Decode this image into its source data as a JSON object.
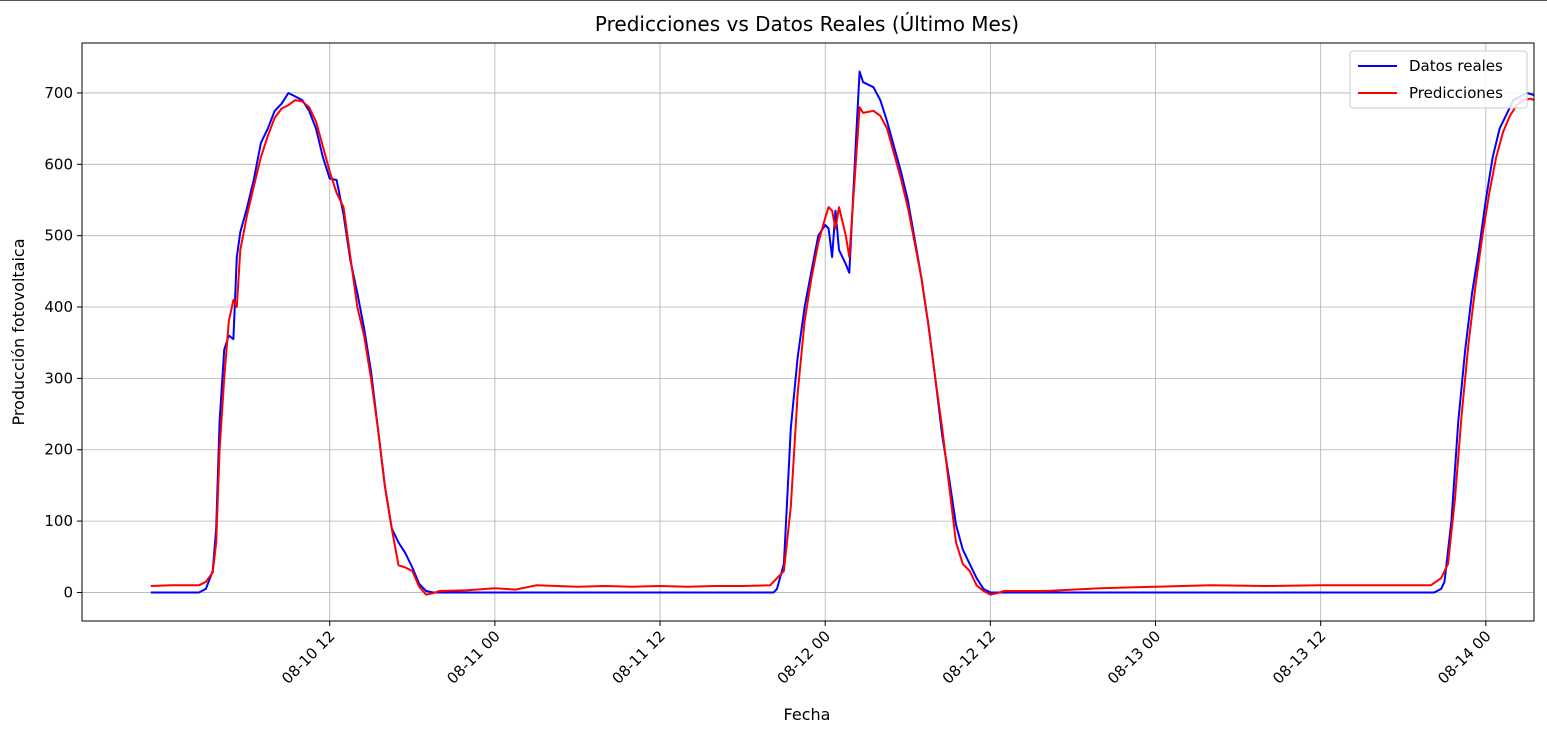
{
  "chart_data": {
    "type": "line",
    "title": "Predicciones vs Datos Reales (Último Mes)",
    "xlabel": "Fecha",
    "ylabel": "Producción fotovoltaica",
    "xlim": [
      "2023-08-09 18:00",
      "2023-08-14 03:30"
    ],
    "ylim": [
      -40,
      770
    ],
    "grid": true,
    "legend_position": "top-right",
    "x_ticks": [
      "08-10 12",
      "08-11 00",
      "08-11 12",
      "08-12 00",
      "08-12 12",
      "08-13 00",
      "08-13 12",
      "08-14 00"
    ],
    "x_tick_dates": [
      "2023-08-10 12:00",
      "2023-08-11 00:00",
      "2023-08-11 12:00",
      "2023-08-12 00:00",
      "2023-08-12 12:00",
      "2023-08-13 00:00",
      "2023-08-13 12:00",
      "2023-08-14 00:00"
    ],
    "y_ticks": [
      0,
      100,
      200,
      300,
      400,
      500,
      600,
      700
    ],
    "series": [
      {
        "name": "Datos reales",
        "color": "#0000ff",
        "points": [
          [
            "2023-08-09 23:00",
            0
          ],
          [
            "2023-08-10 02:30",
            0
          ],
          [
            "2023-08-10 03:00",
            5
          ],
          [
            "2023-08-10 03:30",
            30
          ],
          [
            "2023-08-10 03:45",
            90
          ],
          [
            "2023-08-10 04:00",
            240
          ],
          [
            "2023-08-10 04:20",
            340
          ],
          [
            "2023-08-10 04:40",
            360
          ],
          [
            "2023-08-10 05:00",
            355
          ],
          [
            "2023-08-10 05:15",
            470
          ],
          [
            "2023-08-10 05:30",
            505
          ],
          [
            "2023-08-10 06:00",
            540
          ],
          [
            "2023-08-10 06:30",
            580
          ],
          [
            "2023-08-10 07:00",
            630
          ],
          [
            "2023-08-10 07:30",
            650
          ],
          [
            "2023-08-10 08:00",
            675
          ],
          [
            "2023-08-10 08:30",
            685
          ],
          [
            "2023-08-10 09:00",
            700
          ],
          [
            "2023-08-10 09:30",
            695
          ],
          [
            "2023-08-10 10:00",
            690
          ],
          [
            "2023-08-10 10:30",
            675
          ],
          [
            "2023-08-10 11:00",
            650
          ],
          [
            "2023-08-10 11:30",
            610
          ],
          [
            "2023-08-10 12:00",
            580
          ],
          [
            "2023-08-10 12:30",
            578
          ],
          [
            "2023-08-10 13:00",
            530
          ],
          [
            "2023-08-10 13:30",
            465
          ],
          [
            "2023-08-10 14:00",
            420
          ],
          [
            "2023-08-10 14:30",
            370
          ],
          [
            "2023-08-10 15:00",
            310
          ],
          [
            "2023-08-10 15:30",
            230
          ],
          [
            "2023-08-10 16:00",
            150
          ],
          [
            "2023-08-10 16:30",
            90
          ],
          [
            "2023-08-10 17:00",
            70
          ],
          [
            "2023-08-10 17:30",
            55
          ],
          [
            "2023-08-10 18:00",
            35
          ],
          [
            "2023-08-10 18:30",
            12
          ],
          [
            "2023-08-10 19:00",
            2
          ],
          [
            "2023-08-10 19:30",
            0
          ],
          [
            "2023-08-11 20:15",
            0
          ],
          [
            "2023-08-11 20:30",
            5
          ],
          [
            "2023-08-11 21:00",
            40
          ],
          [
            "2023-08-11 21:30",
            230
          ],
          [
            "2023-08-11 22:00",
            330
          ],
          [
            "2023-08-11 22:30",
            400
          ],
          [
            "2023-08-11 23:00",
            450
          ],
          [
            "2023-08-11 23:30",
            500
          ],
          [
            "2023-08-12 00:00",
            515
          ],
          [
            "2023-08-12 00:15",
            510
          ],
          [
            "2023-08-12 00:30",
            470
          ],
          [
            "2023-08-12 00:45",
            535
          ],
          [
            "2023-08-12 01:00",
            480
          ],
          [
            "2023-08-12 01:30",
            460
          ],
          [
            "2023-08-12 01:45",
            448
          ],
          [
            "2023-08-12 02:15",
            640
          ],
          [
            "2023-08-12 02:30",
            730
          ],
          [
            "2023-08-12 02:45",
            715
          ],
          [
            "2023-08-12 03:30",
            708
          ],
          [
            "2023-08-12 04:00",
            690
          ],
          [
            "2023-08-12 04:30",
            660
          ],
          [
            "2023-08-12 05:00",
            625
          ],
          [
            "2023-08-12 05:30",
            590
          ],
          [
            "2023-08-12 06:00",
            550
          ],
          [
            "2023-08-12 06:30",
            495
          ],
          [
            "2023-08-12 07:00",
            440
          ],
          [
            "2023-08-12 07:30",
            375
          ],
          [
            "2023-08-12 08:00",
            300
          ],
          [
            "2023-08-12 08:30",
            220
          ],
          [
            "2023-08-12 09:00",
            160
          ],
          [
            "2023-08-12 09:30",
            95
          ],
          [
            "2023-08-12 10:00",
            60
          ],
          [
            "2023-08-12 10:30",
            40
          ],
          [
            "2023-08-12 11:00",
            20
          ],
          [
            "2023-08-12 11:30",
            5
          ],
          [
            "2023-08-12 12:00",
            0
          ],
          [
            "2023-08-13 20:15",
            0
          ],
          [
            "2023-08-13 20:45",
            5
          ],
          [
            "2023-08-13 21:00",
            15
          ],
          [
            "2023-08-13 21:30",
            100
          ],
          [
            "2023-08-13 22:00",
            240
          ],
          [
            "2023-08-13 22:30",
            340
          ],
          [
            "2023-08-13 23:00",
            420
          ],
          [
            "2023-08-13 23:30",
            480
          ],
          [
            "2023-08-14 00:00",
            550
          ],
          [
            "2023-08-14 00:30",
            610
          ],
          [
            "2023-08-14 01:00",
            650
          ],
          [
            "2023-08-14 01:30",
            670
          ],
          [
            "2023-08-14 02:00",
            690
          ],
          [
            "2023-08-14 02:30",
            695
          ],
          [
            "2023-08-14 03:00",
            700
          ],
          [
            "2023-08-14 03:30",
            697
          ]
        ]
      },
      {
        "name": "Predicciones",
        "color": "#ff0000",
        "points": [
          [
            "2023-08-09 23:00",
            9
          ],
          [
            "2023-08-10 00:30",
            10
          ],
          [
            "2023-08-10 02:30",
            10
          ],
          [
            "2023-08-10 03:00",
            15
          ],
          [
            "2023-08-10 03:30",
            28
          ],
          [
            "2023-08-10 03:45",
            70
          ],
          [
            "2023-08-10 04:00",
            200
          ],
          [
            "2023-08-10 04:20",
            300
          ],
          [
            "2023-08-10 04:40",
            380
          ],
          [
            "2023-08-10 05:00",
            410
          ],
          [
            "2023-08-10 05:15",
            400
          ],
          [
            "2023-08-10 05:30",
            480
          ],
          [
            "2023-08-10 06:00",
            530
          ],
          [
            "2023-08-10 06:30",
            570
          ],
          [
            "2023-08-10 07:00",
            610
          ],
          [
            "2023-08-10 07:30",
            640
          ],
          [
            "2023-08-10 08:00",
            665
          ],
          [
            "2023-08-10 08:30",
            678
          ],
          [
            "2023-08-10 09:00",
            683
          ],
          [
            "2023-08-10 09:30",
            690
          ],
          [
            "2023-08-10 10:00",
            688
          ],
          [
            "2023-08-10 10:30",
            680
          ],
          [
            "2023-08-10 11:00",
            660
          ],
          [
            "2023-08-10 11:30",
            625
          ],
          [
            "2023-08-10 12:00",
            590
          ],
          [
            "2023-08-10 12:30",
            560
          ],
          [
            "2023-08-10 13:00",
            540
          ],
          [
            "2023-08-10 13:30",
            470
          ],
          [
            "2023-08-10 14:00",
            400
          ],
          [
            "2023-08-10 14:30",
            360
          ],
          [
            "2023-08-10 15:00",
            300
          ],
          [
            "2023-08-10 15:30",
            230
          ],
          [
            "2023-08-10 16:00",
            150
          ],
          [
            "2023-08-10 16:30",
            90
          ],
          [
            "2023-08-10 17:00",
            38
          ],
          [
            "2023-08-10 17:30",
            35
          ],
          [
            "2023-08-10 18:00",
            30
          ],
          [
            "2023-08-10 18:30",
            8
          ],
          [
            "2023-08-10 19:00",
            -3
          ],
          [
            "2023-08-10 19:30",
            -1
          ],
          [
            "2023-08-10 20:00",
            2
          ],
          [
            "2023-08-10 22:00",
            3
          ],
          [
            "2023-08-11 00:00",
            6
          ],
          [
            "2023-08-11 01:30",
            4
          ],
          [
            "2023-08-11 03:00",
            10
          ],
          [
            "2023-08-11 06:00",
            8
          ],
          [
            "2023-08-11 08:00",
            9
          ],
          [
            "2023-08-11 10:00",
            8
          ],
          [
            "2023-08-11 12:00",
            9
          ],
          [
            "2023-08-11 14:00",
            8
          ],
          [
            "2023-08-11 16:00",
            9
          ],
          [
            "2023-08-11 18:00",
            9
          ],
          [
            "2023-08-11 20:00",
            10
          ],
          [
            "2023-08-11 20:30",
            20
          ],
          [
            "2023-08-11 21:00",
            30
          ],
          [
            "2023-08-11 21:30",
            120
          ],
          [
            "2023-08-11 22:00",
            280
          ],
          [
            "2023-08-11 22:30",
            380
          ],
          [
            "2023-08-11 23:00",
            440
          ],
          [
            "2023-08-11 23:30",
            490
          ],
          [
            "2023-08-12 00:00",
            525
          ],
          [
            "2023-08-12 00:15",
            540
          ],
          [
            "2023-08-12 00:30",
            535
          ],
          [
            "2023-08-12 00:45",
            510
          ],
          [
            "2023-08-12 01:00",
            540
          ],
          [
            "2023-08-12 01:30",
            500
          ],
          [
            "2023-08-12 01:45",
            470
          ],
          [
            "2023-08-12 02:15",
            610
          ],
          [
            "2023-08-12 02:30",
            680
          ],
          [
            "2023-08-12 02:45",
            672
          ],
          [
            "2023-08-12 03:30",
            675
          ],
          [
            "2023-08-12 04:00",
            668
          ],
          [
            "2023-08-12 04:30",
            650
          ],
          [
            "2023-08-12 05:00",
            615
          ],
          [
            "2023-08-12 05:30",
            580
          ],
          [
            "2023-08-12 06:00",
            540
          ],
          [
            "2023-08-12 06:30",
            490
          ],
          [
            "2023-08-12 07:00",
            440
          ],
          [
            "2023-08-12 07:30",
            375
          ],
          [
            "2023-08-12 08:00",
            300
          ],
          [
            "2023-08-12 08:30",
            230
          ],
          [
            "2023-08-12 09:00",
            150
          ],
          [
            "2023-08-12 09:30",
            70
          ],
          [
            "2023-08-12 10:00",
            40
          ],
          [
            "2023-08-12 10:30",
            30
          ],
          [
            "2023-08-12 11:00",
            10
          ],
          [
            "2023-08-12 11:30",
            2
          ],
          [
            "2023-08-12 12:00",
            -3
          ],
          [
            "2023-08-12 12:30",
            -1
          ],
          [
            "2023-08-12 13:00",
            2
          ],
          [
            "2023-08-12 16:00",
            2
          ],
          [
            "2023-08-12 20:00",
            6
          ],
          [
            "2023-08-13 00:00",
            8
          ],
          [
            "2023-08-13 04:00",
            10
          ],
          [
            "2023-08-13 08:00",
            9
          ],
          [
            "2023-08-13 12:00",
            10
          ],
          [
            "2023-08-13 16:00",
            10
          ],
          [
            "2023-08-13 20:00",
            10
          ],
          [
            "2023-08-13 20:45",
            20
          ],
          [
            "2023-08-13 21:15",
            40
          ],
          [
            "2023-08-13 21:45",
            130
          ],
          [
            "2023-08-13 22:15",
            250
          ],
          [
            "2023-08-13 22:45",
            350
          ],
          [
            "2023-08-13 23:15",
            430
          ],
          [
            "2023-08-13 23:45",
            500
          ],
          [
            "2023-08-14 00:15",
            560
          ],
          [
            "2023-08-14 00:45",
            610
          ],
          [
            "2023-08-14 01:15",
            645
          ],
          [
            "2023-08-14 01:45",
            668
          ],
          [
            "2023-08-14 02:15",
            683
          ],
          [
            "2023-08-14 02:45",
            690
          ],
          [
            "2023-08-14 03:15",
            692
          ],
          [
            "2023-08-14 03:30",
            690
          ]
        ]
      }
    ]
  }
}
